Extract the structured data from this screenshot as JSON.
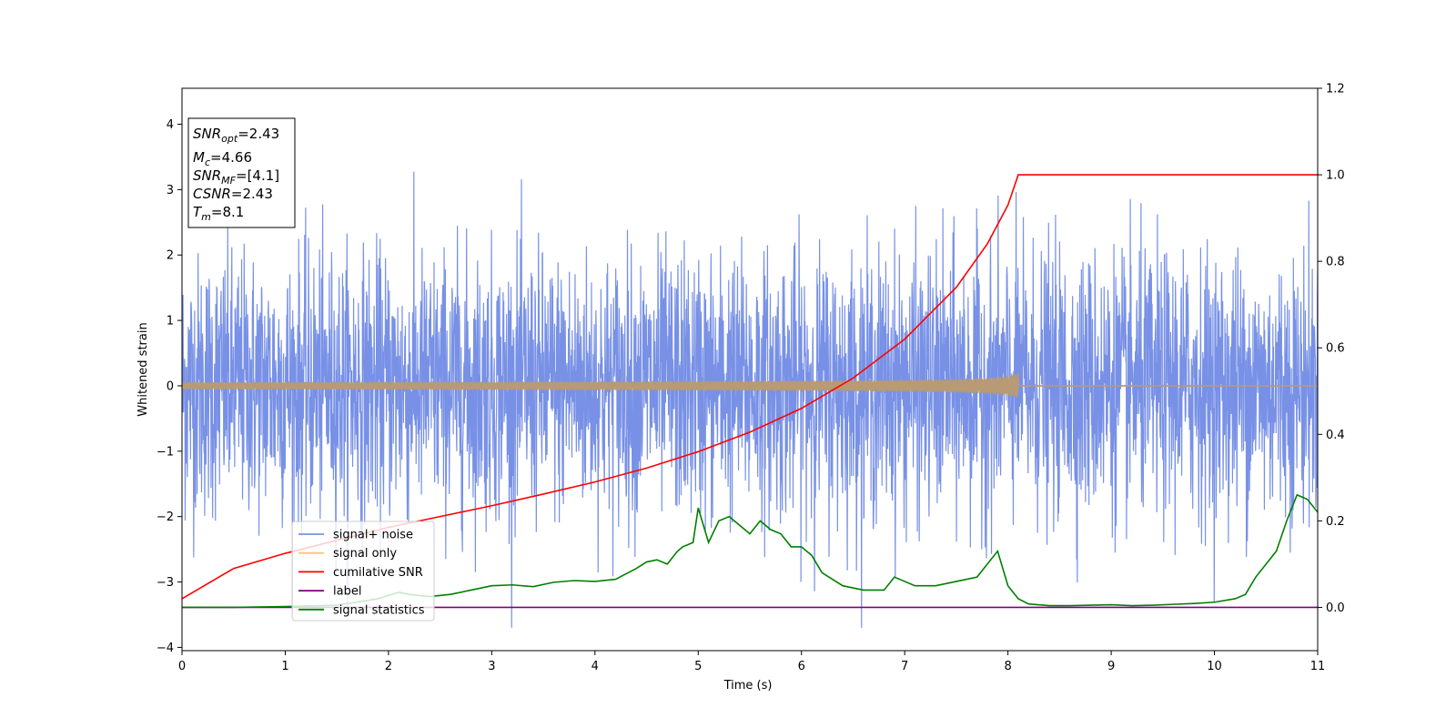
{
  "chart_data": {
    "type": "line",
    "xlabel": "Time (s)",
    "ylabel": "Whitened strain",
    "xlim": [
      0,
      11
    ],
    "ylim_left": [
      -4.05,
      4.55
    ],
    "ylim_right": [
      -0.1,
      1.2
    ],
    "x_ticks": [
      "0",
      "1",
      "2",
      "3",
      "4",
      "5",
      "6",
      "7",
      "8",
      "9",
      "10",
      "11"
    ],
    "y_ticks_left": [
      "4",
      "3",
      "2",
      "1",
      "0",
      "−1",
      "−2",
      "−3",
      "−4"
    ],
    "y_ticks_right": [
      "1.2",
      "1.0",
      "0.8",
      "0.6",
      "0.4",
      "0.2",
      "0.0"
    ],
    "grid": false,
    "legend_position": "lower-left",
    "info_box": {
      "snr_opt": {
        "symbol": "SNR",
        "subscript": "opt",
        "value": "=2.43"
      },
      "mc": {
        "symbol": "M",
        "subscript": "c",
        "value": "=4.66"
      },
      "snr_mf": {
        "symbol": "SNR",
        "subscript": "MF",
        "value": "=[4.1]"
      },
      "csnr": {
        "symbol": "CSNR",
        "value": "=2.43"
      },
      "tm": {
        "symbol": "T",
        "subscript": "m",
        "value": "=8.1"
      }
    },
    "series": [
      {
        "name": "signal+ noise",
        "color": "#7891e6",
        "axis": "left",
        "noise_sigma": 1.0,
        "x_range": [
          0,
          11
        ]
      },
      {
        "name": "signal only",
        "color": "#f5c77e",
        "axis": "left",
        "merger_time": 8.1,
        "peak_amplitude": 0.2,
        "x_range": [
          0,
          11
        ]
      },
      {
        "name": "cumilative SNR",
        "color": "#ff0000",
        "axis": "right",
        "x": [
          0,
          0.5,
          1,
          1.5,
          2,
          2.5,
          3,
          3.5,
          4,
          4.5,
          5,
          5.5,
          6,
          6.5,
          7,
          7.5,
          7.8,
          8.0,
          8.1,
          8.11,
          9,
          10,
          11
        ],
        "y": [
          0.02,
          0.09,
          0.125,
          0.155,
          0.185,
          0.21,
          0.235,
          0.262,
          0.29,
          0.322,
          0.36,
          0.405,
          0.46,
          0.53,
          0.62,
          0.74,
          0.84,
          0.93,
          1.0,
          1.0,
          1.0,
          1.0,
          1.0
        ]
      },
      {
        "name": "label",
        "color": "#800080",
        "axis": "right",
        "x": [
          0,
          11
        ],
        "y": [
          0.0,
          0.0
        ]
      },
      {
        "name": "signal statistics",
        "color": "#008000",
        "axis": "right",
        "x": [
          0,
          0.5,
          1,
          1.5,
          1.9,
          2.1,
          2.2,
          2.4,
          2.6,
          2.8,
          3.0,
          3.2,
          3.4,
          3.6,
          3.8,
          4.0,
          4.2,
          4.4,
          4.5,
          4.6,
          4.7,
          4.8,
          4.85,
          4.95,
          5.0,
          5.1,
          5.2,
          5.3,
          5.4,
          5.5,
          5.6,
          5.7,
          5.8,
          5.9,
          6.0,
          6.1,
          6.2,
          6.4,
          6.6,
          6.8,
          6.9,
          7.0,
          7.1,
          7.3,
          7.5,
          7.7,
          7.9,
          8.0,
          8.1,
          8.2,
          8.4,
          8.6,
          8.8,
          9.0,
          9.2,
          9.4,
          9.6,
          9.8,
          10.0,
          10.2,
          10.3,
          10.4,
          10.5,
          10.6,
          10.7,
          10.8,
          10.9,
          11.0
        ],
        "y": [
          0.0,
          0.0,
          0.002,
          0.005,
          0.02,
          0.035,
          0.03,
          0.025,
          0.03,
          0.04,
          0.05,
          0.052,
          0.048,
          0.058,
          0.062,
          0.06,
          0.065,
          0.09,
          0.105,
          0.11,
          0.1,
          0.13,
          0.14,
          0.15,
          0.23,
          0.15,
          0.2,
          0.21,
          0.19,
          0.17,
          0.2,
          0.18,
          0.17,
          0.14,
          0.14,
          0.12,
          0.08,
          0.05,
          0.04,
          0.04,
          0.07,
          0.06,
          0.05,
          0.05,
          0.06,
          0.07,
          0.13,
          0.05,
          0.02,
          0.008,
          0.004,
          0.004,
          0.005,
          0.006,
          0.004,
          0.005,
          0.007,
          0.009,
          0.012,
          0.02,
          0.03,
          0.07,
          0.1,
          0.13,
          0.2,
          0.26,
          0.25,
          0.22
        ]
      }
    ]
  }
}
